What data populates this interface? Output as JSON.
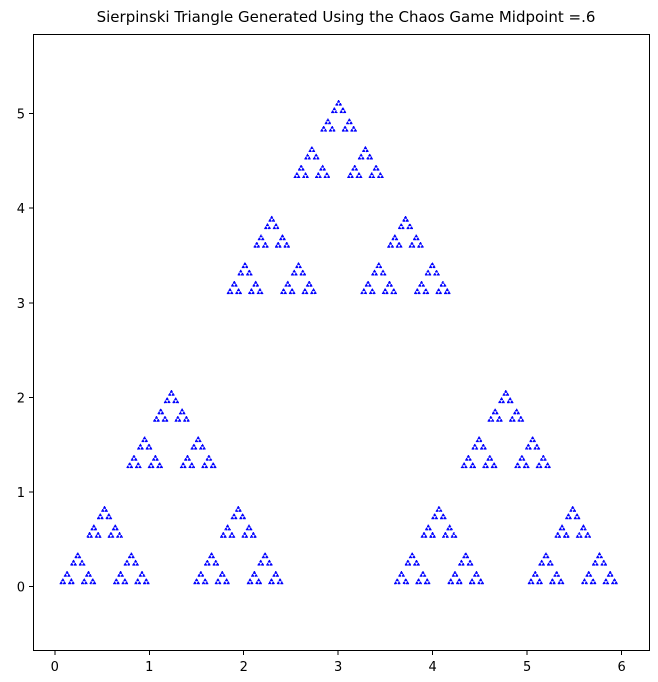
{
  "chart_data": {
    "type": "scatter",
    "title": "Sierpinski Triangle Generated Using the Chaos Game Midpoint =.6",
    "xlabel": "",
    "ylabel": "",
    "xlim": [
      -0.22,
      6.29
    ],
    "ylim": [
      -0.67,
      5.83
    ],
    "x_ticks": [
      0,
      1,
      2,
      3,
      4,
      5,
      6
    ],
    "y_ticks": [
      0,
      1,
      2,
      3,
      4,
      5
    ],
    "grid": false,
    "legend": "none",
    "vertices": [
      {
        "x": 0.05,
        "y": 0.03
      },
      {
        "x": 5.95,
        "y": 0.03
      },
      {
        "x": 3.0,
        "y": 5.14
      }
    ],
    "ratio": 0.6,
    "point_count": 30000,
    "marker": "dot",
    "color": "#0000ff"
  }
}
